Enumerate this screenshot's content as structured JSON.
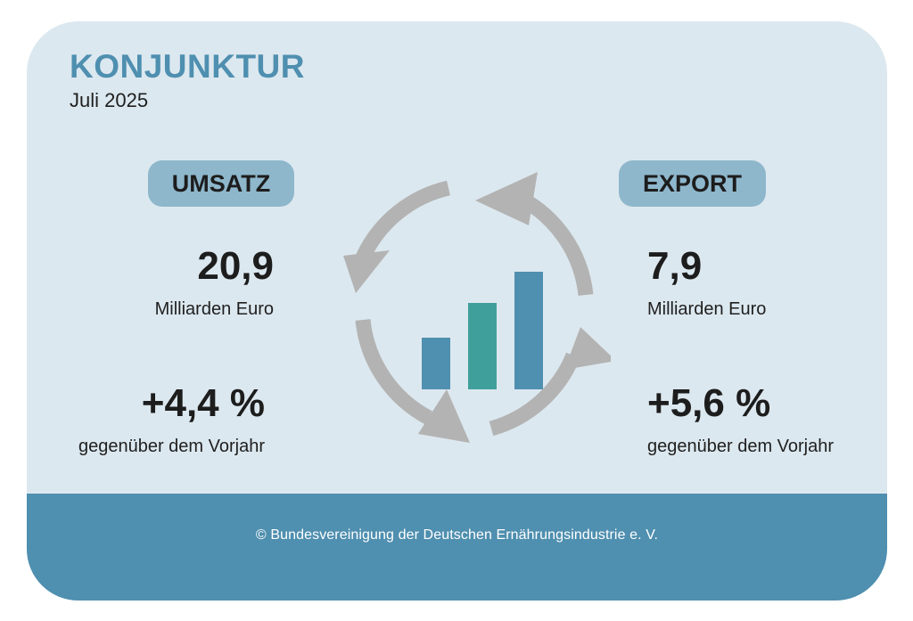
{
  "header": {
    "title": "KONJUNKTUR",
    "date": "Juli 2025"
  },
  "umsatz": {
    "label": "UMSATZ",
    "value": "20,9",
    "unit": "Milliarden Euro",
    "change": "+4,4 %",
    "change_note": "gegenüber dem Vorjahr"
  },
  "export": {
    "label": "EXPORT",
    "value": "7,9",
    "unit": "Milliarden Euro",
    "change": "+5,6 %",
    "change_note": "gegenüber dem Vorjahr"
  },
  "graphic": {
    "icon": "cycle-arrows-bar-chart-icon",
    "arrow_color": "#b3b3b3",
    "bar_colors": [
      "#4f8fb0",
      "#3f9f9b",
      "#4f8fb0"
    ]
  },
  "footer": {
    "copyright": "© Bundesvereinigung der Deutschen Ernährungsindustrie e. V."
  },
  "colors": {
    "background": "#dce8ef",
    "accent": "#4f8fb0",
    "pill": "#8eb7cc",
    "footer": "#4f8faf"
  }
}
